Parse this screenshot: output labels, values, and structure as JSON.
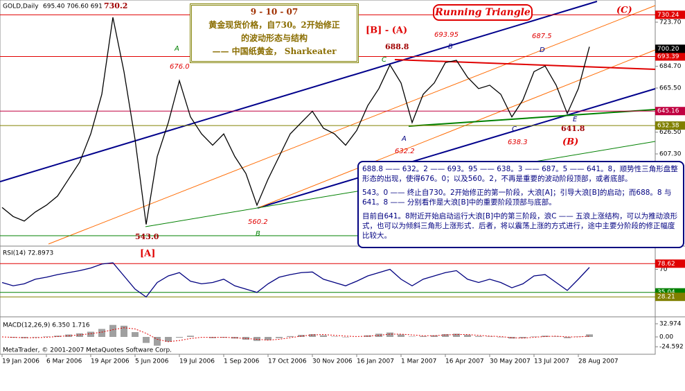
{
  "header": {
    "symbol": "GOLD,Daily",
    "quote": "695.40 706.60 691"
  },
  "chart_data": [
    {
      "type": "line",
      "color": "#000000",
      "title": "Running Triangle",
      "categories": [
        "19 Jan 2006",
        null,
        null,
        null,
        "6 Mar 2006",
        null,
        null,
        null,
        "19 Apr 2006",
        null,
        null,
        null,
        "5 Jun 2006",
        null,
        null,
        null,
        "19 Jul 2006",
        null,
        null,
        null,
        "1 Sep 2006",
        null,
        null,
        null,
        "17 Oct 2006",
        null,
        null,
        null,
        "30 Nov 2006",
        null,
        null,
        null,
        "16 Jan 2007",
        null,
        null,
        null,
        "1 Mar 2007",
        null,
        null,
        null,
        "16 Apr 2007",
        null,
        null,
        null,
        "30 May 2007",
        null,
        null,
        null,
        "13 Jul 2007",
        null,
        null,
        null,
        "28 Aug 2007",
        null
      ],
      "values": [
        560,
        552,
        548,
        556,
        562,
        570,
        585,
        600,
        625,
        660,
        728,
        680,
        620,
        545,
        605,
        635,
        672,
        640,
        625,
        615,
        625,
        605,
        590,
        562,
        585,
        605,
        625,
        635,
        645,
        630,
        625,
        615,
        628,
        650,
        665,
        686,
        670,
        635,
        660,
        670,
        688,
        690,
        675,
        665,
        668,
        660,
        640,
        655,
        680,
        685,
        668,
        643,
        665,
        702
      ],
      "ylim": [
        528.9,
        743.3
      ],
      "yticks": [
        {
          "value": 723.7,
          "label": "723.70"
        },
        {
          "value": 684.7,
          "label": "684.70"
        },
        {
          "value": 665.5,
          "label": "665.50"
        },
        {
          "value": 626.5,
          "label": "626.50"
        },
        {
          "value": 607.3,
          "label": "607.30"
        }
      ],
      "levels": [
        {
          "value": 730.24,
          "label": "730.24",
          "color": "#e00000"
        },
        {
          "value": 693.39,
          "label": "693.39",
          "color": "#e00000"
        },
        {
          "value": 645.16,
          "label": "645.16",
          "color": "#c00040"
        },
        {
          "value": 632.38,
          "label": "632.38",
          "color": "#808000"
        }
      ],
      "last": {
        "value": 700.2,
        "label": "700.20"
      },
      "annotations": [
        "730.2",
        "676.0",
        "543.0",
        "560.2",
        "688.8",
        "693.95",
        "687.5",
        "632.2",
        "638.3",
        "641.8",
        "A",
        "B",
        "C",
        "A",
        "B",
        "C",
        "D",
        "E",
        "[A]",
        "[B] - (A)",
        "(B)",
        "(C)"
      ]
    },
    {
      "type": "line",
      "color": "#000080",
      "title": "RSI(14) 72.8973",
      "values": [
        50,
        45,
        48,
        55,
        58,
        62,
        65,
        68,
        72,
        78,
        80,
        60,
        40,
        28,
        50,
        60,
        65,
        52,
        48,
        50,
        55,
        45,
        40,
        35,
        48,
        58,
        62,
        65,
        66,
        55,
        50,
        45,
        52,
        60,
        65,
        70,
        55,
        45,
        55,
        60,
        65,
        68,
        55,
        50,
        55,
        50,
        42,
        48,
        60,
        62,
        50,
        38,
        55,
        72.8973
      ],
      "ylim": [
        0,
        100
      ],
      "yticks": [
        70
      ],
      "levels": [
        {
          "value": 78.62,
          "label": "78.62",
          "color": "#e00000"
        },
        {
          "value": 35.04,
          "label": "35.04",
          "color": "#008000"
        },
        {
          "value": 28.21,
          "label": "28.21",
          "color": "#808000"
        }
      ]
    },
    {
      "type": "macd",
      "color": "#a0a0a0",
      "signal_color": "#e00000",
      "title": "MACD(12,26,9) 6.350 1.716",
      "values": [
        0,
        -2,
        -3,
        -1,
        1,
        3,
        6,
        9,
        13,
        20,
        30,
        28,
        12,
        -15,
        -22,
        -12,
        -2,
        3,
        0,
        -3,
        -2,
        -4,
        -7,
        -10,
        -8,
        -3,
        2,
        5,
        7,
        4,
        1,
        -1,
        0,
        4,
        8,
        11,
        6,
        1,
        2,
        4,
        7,
        8,
        5,
        2,
        1,
        -1,
        -4,
        -3,
        1,
        3,
        1,
        -3,
        1,
        6.35
      ],
      "signal": [
        0,
        -1,
        -2,
        -2,
        -1,
        1,
        3,
        5,
        8,
        12,
        18,
        23,
        20,
        9,
        -6,
        -12,
        -9,
        -4,
        -1,
        -1,
        -1,
        -2,
        -4,
        -6,
        -8,
        -6,
        -2,
        2,
        5,
        6,
        4,
        2,
        1,
        2,
        4,
        7,
        7,
        5,
        3,
        3,
        5,
        6,
        6,
        4,
        2,
        1,
        -2,
        -3,
        -1,
        1,
        2,
        0,
        0,
        1.716
      ],
      "ylim": [
        -43.4,
        45.1
      ],
      "yticks": [
        {
          "value": 32.974,
          "label": "32.974"
        },
        {
          "value": 0,
          "label": "0.00"
        },
        {
          "value": -24.592,
          "label": "-24.592"
        }
      ]
    }
  ],
  "text_box": {
    "date": "9 - 10 - 07",
    "lines": [
      "黄金现货价格，自730。2开始修正",
      "的波动形态与结构",
      "—— 中国纸黄金，    Sharkeater"
    ]
  },
  "notes": [
    "688.8 —— 632。2 —— 693。95 —— 638。3 —— 687。5 —— 641。8，顺势性三角形盘整形态的出现，使得676。0；以及560。2，不再是重要的波动阶段顶部，或者底部。",
    "543。0 —— 终止自730。2开始修正的第一阶段，大浪[A]；引导大浪[B]的启动；而688。8 与641。8 —— 分别看作是大浪[B]中的重要阶段顶部与底部。",
    "目前自641。8附近开始启动运行大浪[B]中的第三阶段，浪C —— 五浪上涨结构，可以为推动浪形式，也可以为倾斜三角形上涨形式．后者，将以震荡上涨的方式进行，途中主要分阶段的修正幅度比较大。"
  ],
  "footer": "MetaTrader, © 2001-2007 MetaQuotes Software Corp."
}
